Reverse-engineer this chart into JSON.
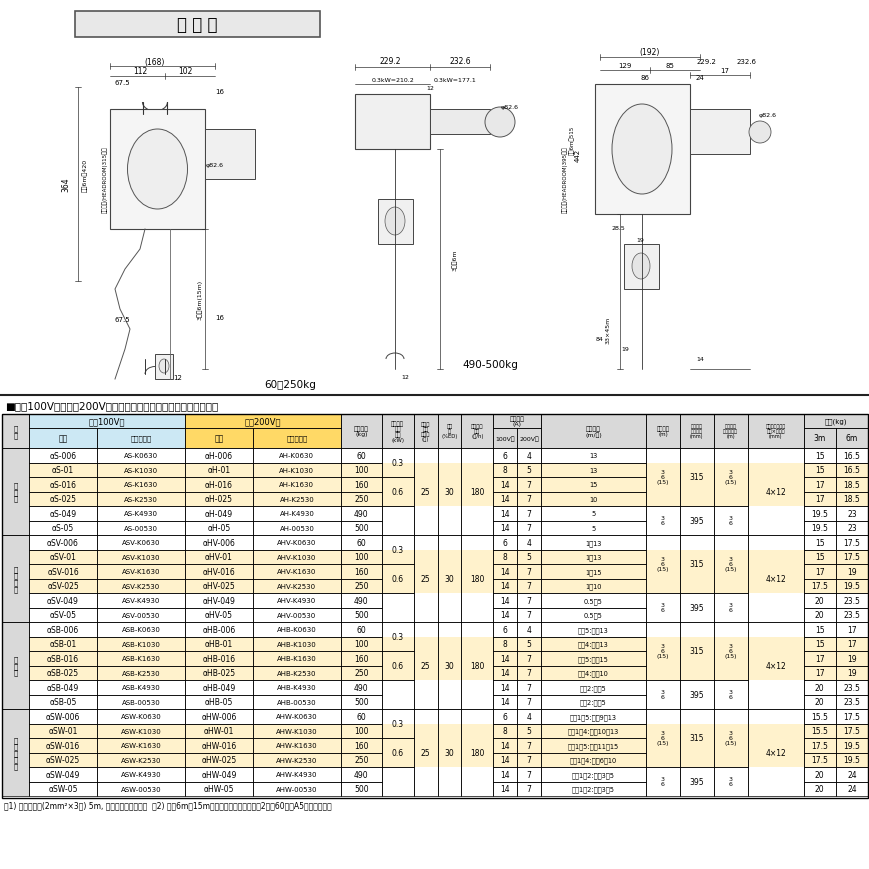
{
  "title_box": "寸 法 図",
  "spec_title": "■単相100V用・単相200V用懸垂式小型電気チェーンブロック仕様",
  "note": "注1) 電源コード(2mm²×3芯) 5m, 差し込みプラグ付。  注2) 揚程6m・15mの商品コードは、最後の2桁ぇ60又はA5になります。",
  "caption_left": "60～250kg",
  "caption_right": "490-500kg",
  "bg_100v": "#cce8f4",
  "bg_200v": "#ffd966",
  "bg_highlight": "#fff2cc",
  "bg_white": "#ffffff",
  "bg_header": "#d9d9d9",
  "rows": [
    [
      "一\n速\n型",
      "αS-006",
      "AS-K0630",
      "αH-006",
      "AH-K0630",
      "60",
      "0.3",
      "25",
      "30",
      "180",
      "6",
      "4",
      "13",
      "3\n6\n(15)",
      "315",
      "3\n6\n(15)",
      "4×12",
      "15",
      "16.5"
    ],
    [
      "",
      "αS-01",
      "AS-K1030",
      "αH-01",
      "AH-K1030",
      "100",
      "",
      "",
      "",
      "",
      "8",
      "5",
      "13",
      "",
      "",
      "",
      "",
      "15",
      "16.5"
    ],
    [
      "",
      "αS-016",
      "AS-K1630",
      "αH-016",
      "AH-K1630",
      "160",
      "0.6",
      "",
      "",
      "",
      "14",
      "7",
      "15",
      "",
      "",
      "",
      "",
      "17",
      "18.5"
    ],
    [
      "",
      "αS-025",
      "AS-K2530",
      "αH-025",
      "AH-K2530",
      "250",
      "",
      "",
      "",
      "",
      "14",
      "7",
      "10",
      "",
      "",
      "",
      "",
      "17",
      "18.5"
    ],
    [
      "",
      "αS-049",
      "AS-K4930",
      "αH-049",
      "AH-K4930",
      "490",
      "",
      "",
      "",
      "",
      "14",
      "7",
      "5",
      "3\n6",
      "395",
      "3\n6",
      "",
      "19.5",
      "23"
    ],
    [
      "",
      "αS-05",
      "AS-00530",
      "αH-05",
      "AH-00530",
      "500",
      "",
      "",
      "",
      "",
      "14",
      "7",
      "5",
      "",
      "",
      "",
      "",
      "19.5",
      "23"
    ],
    [
      "無\n段\n速\n型",
      "αSV-006",
      "ASV-K0630",
      "αHV-006",
      "AHV-K0630",
      "60",
      "0.3",
      "25",
      "30",
      "180",
      "6",
      "4",
      "1～13",
      "3\n6\n(15)",
      "315",
      "3\n6\n(15)",
      "4×12",
      "15",
      "17.5"
    ],
    [
      "",
      "αSV-01",
      "ASV-K1030",
      "αHV-01",
      "AHV-K1030",
      "100",
      "",
      "",
      "",
      "",
      "8",
      "5",
      "1～13",
      "",
      "",
      "",
      "",
      "15",
      "17.5"
    ],
    [
      "",
      "αSV-016",
      "ASV-K1630",
      "αHV-016",
      "AHV-K1630",
      "160",
      "0.6",
      "",
      "",
      "",
      "14",
      "7",
      "1～15",
      "",
      "",
      "",
      "",
      "17",
      "19"
    ],
    [
      "",
      "αSV-025",
      "ASV-K2530",
      "αHV-025",
      "AHV-K2530",
      "250",
      "",
      "",
      "",
      "",
      "14",
      "7",
      "1～10",
      "",
      "",
      "",
      "",
      "17.5",
      "19.5"
    ],
    [
      "",
      "αSV-049",
      "ASV-K4930",
      "αHV-049",
      "AHV-K4930",
      "490",
      "",
      "",
      "",
      "",
      "14",
      "7",
      "0.5～5",
      "3\n6",
      "395",
      "3\n6",
      "",
      "20",
      "23.5"
    ],
    [
      "",
      "αSV-05",
      "ASV-00530",
      "αHV-05",
      "AHV-00530",
      "500",
      "",
      "",
      "",
      "",
      "14",
      "7",
      "0.5～5",
      "",
      "",
      "",
      "",
      "20",
      "23.5"
    ],
    [
      "二\n速\n型",
      "αSB-006",
      "ASB-K0630",
      "αHB-006",
      "AHB-K0630",
      "60",
      "0.3",
      "25",
      "30",
      "180",
      "6",
      "4",
      "一速5:二速13",
      "3\n6\n(15)",
      "315",
      "3\n6\n(15)",
      "4×12",
      "15",
      "17"
    ],
    [
      "",
      "αSB-01",
      "ASB-K1030",
      "αHB-01",
      "AHB-K1030",
      "100",
      "",
      "",
      "",
      "",
      "8",
      "5",
      "一速4:二速13",
      "",
      "",
      "",
      "",
      "15",
      "17"
    ],
    [
      "",
      "αSB-016",
      "ASB-K1630",
      "αHB-016",
      "AHB-K1630",
      "160",
      "0.6",
      "",
      "",
      "",
      "14",
      "7",
      "一速5:二速15",
      "",
      "",
      "",
      "",
      "17",
      "19"
    ],
    [
      "",
      "αSB-025",
      "ASB-K2530",
      "αHB-025",
      "AHB-K2530",
      "250",
      "",
      "",
      "",
      "",
      "14",
      "7",
      "一速4:二速10",
      "",
      "",
      "",
      "",
      "17",
      "19"
    ],
    [
      "",
      "αSB-049",
      "ASB-K4930",
      "αHB-049",
      "AHB-K4930",
      "490",
      "",
      "",
      "",
      "",
      "14",
      "7",
      "一速2:二速5",
      "3\n6",
      "395",
      "3\n6",
      "",
      "20",
      "23.5"
    ],
    [
      "",
      "αSB-05",
      "ASB-00530",
      "αHB-05",
      "AHB-00530",
      "500",
      "",
      "",
      "",
      "",
      "14",
      "7",
      "一速2:二速5",
      "",
      "",
      "",
      "",
      "20",
      "23.5"
    ],
    [
      "二\n速\n選\n択\n型",
      "αSW-006",
      "ASW-K0630",
      "αHW-006",
      "AHW-K0630",
      "60",
      "0.3",
      "25",
      "30",
      "180",
      "6",
      "4",
      "低速1～5:高速9～13",
      "3\n6\n(15)",
      "315",
      "3\n6\n(15)",
      "4×12",
      "15.5",
      "17.5"
    ],
    [
      "",
      "αSW-01",
      "ASW-K1030",
      "αHW-01",
      "AHW-K1030",
      "100",
      "",
      "",
      "",
      "",
      "8",
      "5",
      "低速1～4:高速10～13",
      "",
      "",
      "",
      "",
      "15.5",
      "17.5"
    ],
    [
      "",
      "αSW-016",
      "ASW-K1630",
      "αHW-016",
      "AHW-K1630",
      "160",
      "0.6",
      "",
      "",
      "",
      "14",
      "7",
      "低速1～5:高速11～15",
      "",
      "",
      "",
      "",
      "17.5",
      "19.5"
    ],
    [
      "",
      "αSW-025",
      "ASW-K2530",
      "αHW-025",
      "AHW-K2530",
      "250",
      "",
      "",
      "",
      "",
      "14",
      "7",
      "低速1～4:高速6～10",
      "",
      "",
      "",
      "",
      "17.5",
      "19.5"
    ],
    [
      "",
      "αSW-049",
      "ASW-K4930",
      "αHW-049",
      "AHW-K4930",
      "490",
      "",
      "",
      "",
      "",
      "14",
      "7",
      "低速1～2:高速3～5",
      "3\n6",
      "395",
      "3\n6",
      "",
      "20",
      "24"
    ],
    [
      "",
      "αSW-05",
      "ASW-00530",
      "αHW-05",
      "AHW-00530",
      "500",
      "",
      "",
      "",
      "",
      "14",
      "7",
      "低速1～2:高速3～5",
      "",
      "",
      "",
      "",
      "20",
      "24"
    ]
  ],
  "section_names": [
    "一\n速\n型",
    "無\n段\n速\n型",
    "二\n速\n型",
    "二\n速\n選\n択\n型"
  ],
  "section_starts": [
    0,
    6,
    12,
    18
  ]
}
